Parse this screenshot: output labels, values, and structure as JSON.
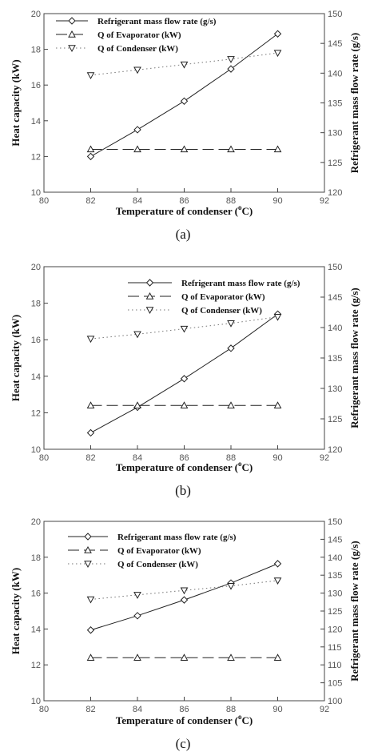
{
  "chart_data": [
    {
      "type": "line",
      "caption": "(a)",
      "xlabel_main": "Temperature of condenser (",
      "xlabel_sup": "o",
      "xlabel_end": "C)",
      "ylabel_left": "Heat capacity (kW)",
      "ylabel_right": "Refrigerant mass flow rate (g/s)",
      "xlim": [
        80,
        92
      ],
      "xticks": [
        "80",
        "82",
        "84",
        "86",
        "88",
        "90",
        "92"
      ],
      "ylim_left": [
        10,
        20
      ],
      "yticks_left": [
        "10",
        "12",
        "14",
        "16",
        "18",
        "20"
      ],
      "ylim_right": [
        120,
        150
      ],
      "yticks_right": [
        "120",
        "125",
        "130",
        "135",
        "140",
        "145",
        "150"
      ],
      "legend_position": "top-left",
      "x": [
        82,
        84,
        86,
        88,
        90
      ],
      "series": [
        {
          "name": "Refrigerant mass flow rate (g/s)",
          "axis": "right",
          "marker": "diamond",
          "style": "solid",
          "values": [
            126.0,
            130.5,
            135.3,
            140.7,
            146.6
          ]
        },
        {
          "name": "Q of Evaporator (kW)",
          "axis": "left",
          "marker": "triangle-up",
          "style": "dashed",
          "values": [
            12.4,
            12.4,
            12.4,
            12.4,
            12.4
          ]
        },
        {
          "name": "Q of Condenser (kW)",
          "axis": "left",
          "marker": "triangle-down",
          "style": "dotted",
          "values": [
            16.55,
            16.85,
            17.15,
            17.45,
            17.8
          ]
        }
      ]
    },
    {
      "type": "line",
      "caption": "(b)",
      "xlabel_main": "Temperature of condenser (",
      "xlabel_sup": "o",
      "xlabel_end": "C)",
      "ylabel_left": "Heat capacity (kW)",
      "ylabel_right": "Refrigerant mass flow rate (g/s)",
      "xlim": [
        80,
        92
      ],
      "xticks": [
        "80",
        "82",
        "84",
        "86",
        "88",
        "90",
        "92"
      ],
      "ylim_left": [
        10,
        20
      ],
      "yticks_left": [
        "10",
        "12",
        "14",
        "16",
        "18",
        "20"
      ],
      "ylim_right": [
        120,
        150
      ],
      "yticks_right": [
        "120",
        "125",
        "130",
        "135",
        "140",
        "145",
        "150"
      ],
      "legend_position": "top-center",
      "x": [
        82,
        84,
        86,
        88,
        90
      ],
      "series": [
        {
          "name": "Refrigerant mass flow rate (g/s)",
          "axis": "right",
          "marker": "diamond",
          "style": "solid",
          "values": [
            122.7,
            126.9,
            131.6,
            136.6,
            142.2
          ]
        },
        {
          "name": "Q of Evaporator (kW)",
          "axis": "left",
          "marker": "triangle-up",
          "style": "dashed",
          "values": [
            12.4,
            12.4,
            12.4,
            12.4,
            12.4
          ]
        },
        {
          "name": "Q of Condenser (kW)",
          "axis": "left",
          "marker": "triangle-down",
          "style": "dotted",
          "values": [
            16.05,
            16.3,
            16.6,
            16.9,
            17.25
          ]
        }
      ]
    },
    {
      "type": "line",
      "caption": "(c)",
      "xlabel_main": "Temperature of condenser (",
      "xlabel_sup": "o",
      "xlabel_end": "C)",
      "ylabel_left": "Heat capacity (kW)",
      "ylabel_right": "Refrigerant mass flow rate (g/s)",
      "xlim": [
        80,
        92
      ],
      "xticks": [
        "80",
        "82",
        "84",
        "86",
        "88",
        "90",
        "92"
      ],
      "ylim_left": [
        10,
        20
      ],
      "yticks_left": [
        "10",
        "12",
        "14",
        "16",
        "18",
        "20"
      ],
      "ylim_right": [
        100,
        150
      ],
      "yticks_right": [
        "100",
        "105",
        "110",
        "115",
        "120",
        "125",
        "130",
        "135",
        "140",
        "145",
        "150"
      ],
      "legend_position": "top-left",
      "x": [
        82,
        84,
        86,
        88,
        90
      ],
      "series": [
        {
          "name": "Refrigerant mass flow rate (g/s)",
          "axis": "right",
          "marker": "diamond",
          "style": "solid",
          "values": [
            119.7,
            123.7,
            128.1,
            132.8,
            138.2
          ]
        },
        {
          "name": "Q of Evaporator (kW)",
          "axis": "left",
          "marker": "triangle-up",
          "style": "dashed",
          "values": [
            12.4,
            12.4,
            12.4,
            12.4,
            12.4
          ]
        },
        {
          "name": "Q of Condenser (kW)",
          "axis": "left",
          "marker": "triangle-down",
          "style": "dotted",
          "values": [
            15.65,
            15.9,
            16.15,
            16.4,
            16.7
          ]
        }
      ]
    }
  ]
}
